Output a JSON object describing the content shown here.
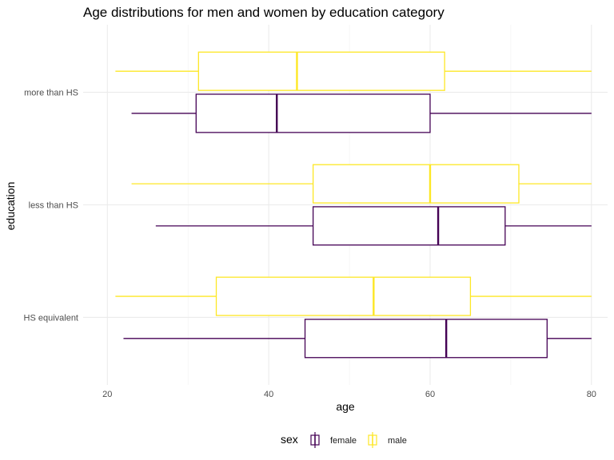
{
  "chart_data": {
    "type": "boxplot",
    "orientation": "horizontal",
    "title": "Age distributions for men and women by education category",
    "xlabel": "age",
    "ylabel": "education",
    "xlim": [
      17,
      82
    ],
    "x_ticks": [
      20,
      40,
      60,
      80
    ],
    "categories": [
      "HS equivalent",
      "less than HS",
      "more than HS"
    ],
    "grid": true,
    "legend": {
      "title": "sex",
      "position": "bottom"
    },
    "series": [
      {
        "name": "female",
        "color": "#440154",
        "boxes": [
          {
            "category": "HS equivalent",
            "min": 22,
            "q1": 44.5,
            "median": 62,
            "q3": 74.5,
            "max": 80
          },
          {
            "category": "less than HS",
            "min": 26,
            "q1": 45.5,
            "median": 61,
            "q3": 69.3,
            "max": 80
          },
          {
            "category": "more than HS",
            "min": 23,
            "q1": 31,
            "median": 41,
            "q3": 60,
            "max": 80
          }
        ]
      },
      {
        "name": "male",
        "color": "#FDE725",
        "boxes": [
          {
            "category": "HS equivalent",
            "min": 21,
            "q1": 33.5,
            "median": 53,
            "q3": 65,
            "max": 80
          },
          {
            "category": "less than HS",
            "min": 23,
            "q1": 45.5,
            "median": 60,
            "q3": 71,
            "max": 80
          },
          {
            "category": "more than HS",
            "min": 21,
            "q1": 31.3,
            "median": 43.5,
            "q3": 61.8,
            "max": 80
          }
        ]
      }
    ]
  }
}
